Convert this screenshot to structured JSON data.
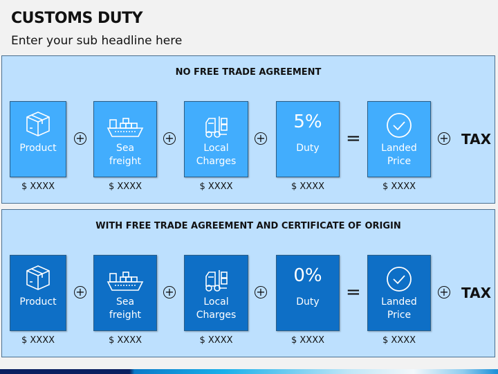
{
  "header": {
    "title": "CUSTOMS DUTY",
    "subtitle": "Enter your sub headline here"
  },
  "colors": {
    "panel_bg": "#bde0fe",
    "box_light": "#42adfd",
    "box_dark": "#0e6fc6"
  },
  "panels": [
    {
      "title": "NO FREE TRADE AGREEMENT",
      "duty_pct": "5%",
      "box_color": "#42adfd"
    },
    {
      "title": "WITH FREE TRADE AGREEMENT AND CERTIFICATE OF ORIGIN",
      "duty_pct": "0%",
      "box_color": "#0e6fc6"
    }
  ],
  "items": [
    {
      "icon": "box-icon",
      "label1": "Product",
      "label2": "",
      "price": "$ XXXX"
    },
    {
      "icon": "ship-icon",
      "label1": "Sea",
      "label2": "freight",
      "price": "$ XXXX"
    },
    {
      "icon": "forklift-icon",
      "label1": "Local",
      "label2": "Charges",
      "price": "$ XXXX"
    },
    {
      "icon": "percent",
      "label1": "Duty",
      "label2": "",
      "price": "$ XXXX"
    },
    {
      "icon": "check-circle-icon",
      "label1": "Landed",
      "label2": "Price",
      "price": "$ XXXX"
    }
  ],
  "operators": {
    "plus": "+",
    "equals": "=",
    "tax": "TAX"
  }
}
